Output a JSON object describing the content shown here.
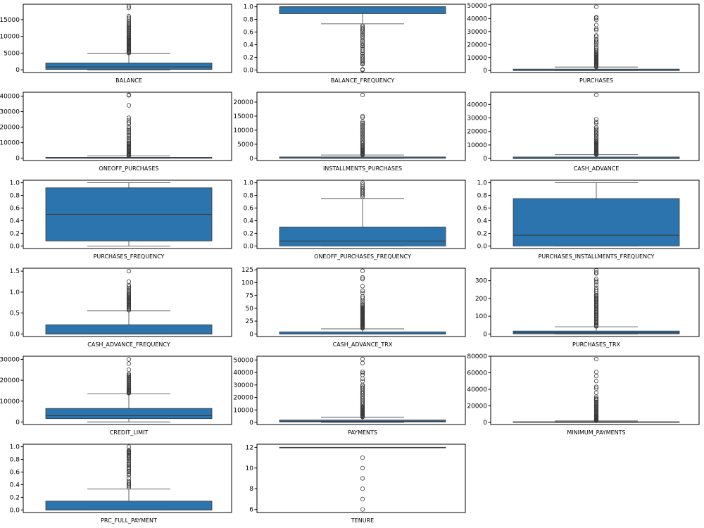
{
  "figure": {
    "box_color": "#2c74ad"
  },
  "chart_data": [
    {
      "type": "boxplot",
      "xlabel": "BALANCE",
      "ylim": [
        -800,
        19600
      ],
      "yticks": [
        0,
        5000,
        10000,
        15000
      ],
      "q1": 128,
      "median": 873,
      "q3": 2054,
      "whisker_low": 0,
      "whisker_high": 4940,
      "outliers": [
        5000,
        5200,
        5400,
        5600,
        5800,
        6000,
        6200,
        6400,
        6600,
        6800,
        7000,
        7200,
        7400,
        7600,
        7800,
        8000,
        8200,
        8400,
        8600,
        8800,
        9000,
        9200,
        9400,
        9600,
        9800,
        10000,
        10300,
        10600,
        10900,
        11200,
        11500,
        11800,
        12100,
        12400,
        12700,
        13000,
        13300,
        13600,
        14000,
        14500,
        15000,
        15500,
        16000,
        18500,
        19000
      ]
    },
    {
      "type": "boxplot",
      "xlabel": "BALANCE_FREQUENCY",
      "ylim": [
        -0.04,
        1.04
      ],
      "yticks": [
        0.0,
        0.2,
        0.4,
        0.6,
        0.8,
        1.0
      ],
      "q1": 0.89,
      "median": 1.0,
      "q3": 1.0,
      "whisker_low": 0.73,
      "whisker_high": 1.0,
      "outliers": [
        0.0,
        0.01,
        0.09,
        0.1,
        0.12,
        0.14,
        0.16,
        0.18,
        0.2,
        0.22,
        0.25,
        0.27,
        0.3,
        0.33,
        0.36,
        0.38,
        0.4,
        0.42,
        0.45,
        0.47,
        0.5,
        0.53,
        0.55,
        0.57,
        0.6,
        0.62,
        0.64,
        0.66,
        0.68,
        0.7
      ]
    },
    {
      "type": "boxplot",
      "xlabel": "PURCHASES",
      "ylim": [
        -1500,
        51000
      ],
      "yticks": [
        0,
        10000,
        20000,
        30000,
        40000,
        50000
      ],
      "q1": 40,
      "median": 360,
      "q3": 1110,
      "whisker_low": 0,
      "whisker_high": 2715,
      "outliers": [
        2800,
        3200,
        3600,
        4000,
        4500,
        5000,
        5500,
        6000,
        6500,
        7000,
        7500,
        8000,
        8500,
        9000,
        9500,
        10000,
        10500,
        11000,
        11500,
        12000,
        12500,
        13000,
        14000,
        15000,
        16000,
        17000,
        18000,
        19500,
        21000,
        22000,
        23000,
        24000,
        26000,
        27000,
        31000,
        32000,
        35000,
        39000,
        40500,
        41000,
        49000
      ]
    },
    {
      "type": "boxplot",
      "xlabel": "ONEOFF_PURCHASES",
      "ylim": [
        -1500,
        42500
      ],
      "yticks": [
        0,
        10000,
        20000,
        30000,
        40000
      ],
      "q1": 0,
      "median": 38,
      "q3": 577,
      "whisker_low": 0,
      "whisker_high": 1443,
      "outliers": [
        1500,
        1800,
        2100,
        2400,
        2700,
        3000,
        3400,
        3800,
        4200,
        4600,
        5000,
        5500,
        6000,
        6500,
        7000,
        7500,
        8000,
        8500,
        9000,
        9500,
        10000,
        11000,
        12000,
        13000,
        14000,
        15000,
        16000,
        17000,
        18000,
        19000,
        20000,
        22000,
        23000,
        24500,
        26000,
        34000,
        40500,
        40800
      ]
    },
    {
      "type": "boxplot",
      "xlabel": "INSTALLMENTS_PURCHASES",
      "ylim": [
        -800,
        23500
      ],
      "yticks": [
        0,
        5000,
        10000,
        15000,
        20000
      ],
      "q1": 0,
      "median": 89,
      "q3": 468,
      "whisker_low": 0,
      "whisker_high": 1170,
      "outliers": [
        1200,
        1400,
        1600,
        1800,
        2000,
        2200,
        2400,
        2600,
        2800,
        3000,
        3300,
        3600,
        3900,
        4200,
        4500,
        4800,
        5200,
        5600,
        6000,
        6500,
        7000,
        7500,
        8000,
        8500,
        9000,
        9500,
        10000,
        10500,
        11000,
        11500,
        12000,
        12500,
        13000,
        14500,
        15000,
        22500
      ]
    },
    {
      "type": "boxplot",
      "xlabel": "CASH_ADVANCE",
      "ylim": [
        -1500,
        49000
      ],
      "yticks": [
        0,
        10000,
        20000,
        30000,
        40000
      ],
      "q1": 0,
      "median": 0,
      "q3": 1114,
      "whisker_low": 0,
      "whisker_high": 2784,
      "outliers": [
        2900,
        3200,
        3500,
        3800,
        4100,
        4400,
        4700,
        5000,
        5500,
        6000,
        6500,
        7000,
        7500,
        8000,
        8500,
        9000,
        9500,
        10000,
        10500,
        11000,
        11500,
        12000,
        12500,
        13000,
        14000,
        15000,
        16000,
        17000,
        18000,
        19000,
        20000,
        21000,
        22000,
        23000,
        26000,
        27000,
        29000,
        47000
      ]
    },
    {
      "type": "boxplot",
      "xlabel": "PURCHASES_FREQUENCY",
      "ylim": [
        -0.04,
        1.04
      ],
      "yticks": [
        0.0,
        0.2,
        0.4,
        0.6,
        0.8,
        1.0
      ],
      "q1": 0.08,
      "median": 0.5,
      "q3": 0.92,
      "whisker_low": 0.0,
      "whisker_high": 1.0,
      "outliers": []
    },
    {
      "type": "boxplot",
      "xlabel": "ONEOFF_PURCHASES_FREQUENCY",
      "ylim": [
        -0.04,
        1.04
      ],
      "yticks": [
        0.0,
        0.2,
        0.4,
        0.6,
        0.8,
        1.0
      ],
      "q1": 0.0,
      "median": 0.08,
      "q3": 0.3,
      "whisker_low": 0.0,
      "whisker_high": 0.75,
      "outliers": [
        0.78,
        0.8,
        0.82,
        0.84,
        0.86,
        0.88,
        0.9,
        0.92,
        0.94,
        0.97,
        1.0
      ]
    },
    {
      "type": "boxplot",
      "xlabel": "PURCHASES_INSTALLMENTS_FREQUENCY",
      "ylim": [
        -0.04,
        1.04
      ],
      "yticks": [
        0.0,
        0.2,
        0.4,
        0.6,
        0.8,
        1.0
      ],
      "q1": 0.0,
      "median": 0.17,
      "q3": 0.75,
      "whisker_low": 0.0,
      "whisker_high": 1.0,
      "outliers": []
    },
    {
      "type": "boxplot",
      "xlabel": "CASH_ADVANCE_FREQUENCY",
      "ylim": [
        -0.06,
        1.57
      ],
      "yticks": [
        0.0,
        0.5,
        1.0,
        1.5
      ],
      "q1": 0.0,
      "median": 0.0,
      "q3": 0.22,
      "whisker_low": 0.0,
      "whisker_high": 0.55,
      "outliers": [
        0.57,
        0.6,
        0.62,
        0.64,
        0.66,
        0.68,
        0.7,
        0.72,
        0.74,
        0.76,
        0.78,
        0.8,
        0.82,
        0.84,
        0.86,
        0.88,
        0.9,
        0.92,
        0.94,
        0.96,
        1.0,
        1.03,
        1.06,
        1.1,
        1.13,
        1.17,
        1.25,
        1.5
      ]
    },
    {
      "type": "boxplot",
      "xlabel": "CASH_ADVANCE_TRX",
      "ylim": [
        -5,
        128
      ],
      "yticks": [
        0,
        25,
        50,
        75,
        100,
        125
      ],
      "q1": 0,
      "median": 0,
      "q3": 4,
      "whisker_low": 0,
      "whisker_high": 10,
      "outliers": [
        11,
        12,
        13,
        14,
        15,
        16,
        17,
        18,
        19,
        20,
        21,
        22,
        23,
        24,
        25,
        26,
        27,
        28,
        29,
        30,
        31,
        32,
        33,
        34,
        35,
        36,
        37,
        38,
        39,
        40,
        41,
        42,
        43,
        44,
        45,
        46,
        47,
        48,
        49,
        50,
        51,
        52,
        54,
        56,
        58,
        62,
        66,
        70,
        73,
        80,
        84,
        93,
        107,
        110,
        123
      ]
    },
    {
      "type": "boxplot",
      "xlabel": "PURCHASES_TRX",
      "ylim": [
        -14,
        370
      ],
      "yticks": [
        0,
        100,
        200,
        300
      ],
      "q1": 1,
      "median": 7,
      "q3": 17,
      "whisker_low": 0,
      "whisker_high": 41,
      "outliers": [
        43,
        46,
        50,
        55,
        60,
        65,
        70,
        75,
        80,
        85,
        90,
        95,
        100,
        105,
        110,
        115,
        120,
        125,
        130,
        135,
        140,
        145,
        150,
        155,
        160,
        165,
        170,
        175,
        180,
        185,
        190,
        195,
        200,
        205,
        210,
        215,
        220,
        230,
        240,
        250,
        260,
        275,
        290,
        300,
        310,
        340,
        347,
        358
      ]
    },
    {
      "type": "boxplot",
      "xlabel": "CREDIT_LIMIT",
      "ylim": [
        -1200,
        31500
      ],
      "yticks": [
        0,
        10000,
        20000,
        30000
      ],
      "q1": 1600,
      "median": 3000,
      "q3": 6500,
      "whisker_low": 50,
      "whisker_high": 13500,
      "outliers": [
        13800,
        14000,
        14200,
        14500,
        14800,
        15000,
        15300,
        15600,
        16000,
        16500,
        17000,
        17500,
        18000,
        18500,
        19000,
        19500,
        20000,
        20500,
        21000,
        21500,
        22000,
        22500,
        23000,
        25000,
        28000,
        30000
      ]
    },
    {
      "type": "boxplot",
      "xlabel": "PAYMENTS",
      "ylim": [
        -1700,
        53000
      ],
      "yticks": [
        0,
        10000,
        20000,
        30000,
        40000,
        50000
      ],
      "q1": 384,
      "median": 857,
      "q3": 1902,
      "whisker_low": 0,
      "whisker_high": 4178,
      "outliers": [
        4300,
        4600,
        5000,
        5400,
        5800,
        6200,
        6600,
        7000,
        7500,
        8000,
        8500,
        9000,
        9500,
        10000,
        10500,
        11000,
        11500,
        12000,
        12500,
        13000,
        14000,
        15000,
        16000,
        17000,
        18000,
        19000,
        20000,
        21000,
        22000,
        23000,
        24000,
        25000,
        26000,
        27000,
        28000,
        29000,
        30000,
        33000,
        35000,
        38000,
        39500,
        40500,
        47500,
        50800
      ]
    },
    {
      "type": "boxplot",
      "xlabel": "MINIMUM_PAYMENTS",
      "ylim": [
        -2500,
        80000
      ],
      "yticks": [
        0,
        20000,
        40000,
        60000,
        80000
      ],
      "q1": 170,
      "median": 312,
      "q3": 825,
      "whisker_low": 0,
      "whisker_high": 1800,
      "outliers": [
        1900,
        2200,
        2500,
        2800,
        3200,
        3600,
        4000,
        4500,
        5000,
        5500,
        6000,
        6500,
        7000,
        7500,
        8000,
        9000,
        10000,
        11000,
        12000,
        13000,
        14000,
        15000,
        16000,
        17000,
        18000,
        19000,
        20000,
        21000,
        22000,
        23000,
        24000,
        25000,
        26500,
        28000,
        29000,
        31000,
        36000,
        41000,
        43000,
        50000,
        56000,
        61000,
        76500
      ]
    },
    {
      "type": "boxplot",
      "xlabel": "PRC_FULL_PAYMENT",
      "ylim": [
        -0.04,
        1.04
      ],
      "yticks": [
        0.0,
        0.2,
        0.4,
        0.6,
        0.8,
        1.0
      ],
      "q1": 0.0,
      "median": 0.0,
      "q3": 0.14,
      "whisker_low": 0.0,
      "whisker_high": 0.33,
      "outliers": [
        0.36,
        0.38,
        0.4,
        0.42,
        0.44,
        0.46,
        0.5,
        0.55,
        0.57,
        0.6,
        0.62,
        0.64,
        0.66,
        0.67,
        0.7,
        0.72,
        0.73,
        0.75,
        0.78,
        0.8,
        0.82,
        0.83,
        0.85,
        0.86,
        0.88,
        0.9,
        0.91,
        0.92,
        0.93,
        0.95,
        1.0
      ]
    },
    {
      "type": "boxplot",
      "xlabel": "TENURE",
      "ylim": [
        5.7,
        12.3
      ],
      "yticks": [
        6,
        8,
        10,
        12
      ],
      "q1": 12,
      "median": 12,
      "q3": 12,
      "whisker_low": 12,
      "whisker_high": 12,
      "outliers": [
        6,
        7,
        8,
        9,
        10,
        11
      ]
    }
  ]
}
